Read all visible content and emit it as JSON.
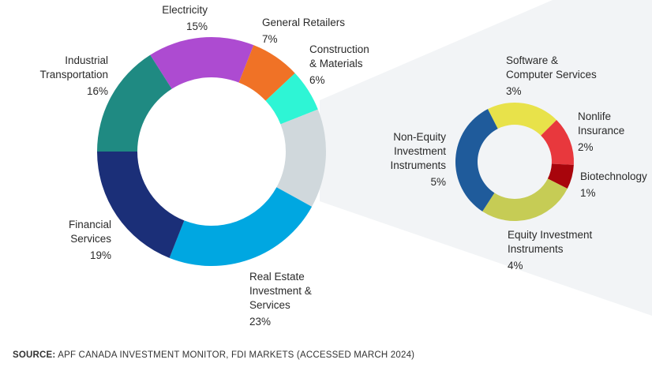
{
  "chart_data": [
    {
      "type": "pie",
      "subtype": "donut",
      "title": "",
      "slices": [
        {
          "label": [
            "Electricity"
          ],
          "value": 15,
          "color": "#ad4bd1"
        },
        {
          "label": [
            "General Retailers"
          ],
          "value": 7,
          "color": "#f07226"
        },
        {
          "label": [
            "Construction",
            "& Materials"
          ],
          "value": 6,
          "color": "#2ef5d5"
        },
        {
          "label": [],
          "value": 14,
          "color": "#d0d8dc"
        },
        {
          "label": [
            "Real Estate",
            "Investment &",
            "Services"
          ],
          "value": 23,
          "color": "#00a7e1"
        },
        {
          "label": [
            "Financial",
            "Services"
          ],
          "value": 19,
          "color": "#1b2f78"
        },
        {
          "label": [
            "Industrial",
            "Transportation"
          ],
          "value": 16,
          "color": "#1f8a82"
        }
      ]
    },
    {
      "type": "pie",
      "subtype": "donut",
      "title": "",
      "breakdown_of": "unlabeled grey slice",
      "slices": [
        {
          "label": [
            "Software &",
            "Computer Services"
          ],
          "value": 3,
          "color": "#e8e24a"
        },
        {
          "label": [
            "Nonlife",
            "Insurance"
          ],
          "value": 2,
          "color": "#e8383d"
        },
        {
          "label": [
            "Biotechnology"
          ],
          "value": 1,
          "color": "#a8050c"
        },
        {
          "label": [
            "Equity Investment",
            "Instruments"
          ],
          "value": 4,
          "color": "#c6cc55"
        },
        {
          "label": [
            "Non-Equity",
            "Investment",
            "Instruments"
          ],
          "value": 5,
          "color": "#1f5b9b"
        }
      ]
    }
  ],
  "source": {
    "prefix": "SOURCE:",
    "text": " APF CANADA INVESTMENT MONITOR, FDI MARKETS (ACCESSED MARCH 2024)"
  },
  "colors": {
    "fan": "#f2f4f6"
  }
}
